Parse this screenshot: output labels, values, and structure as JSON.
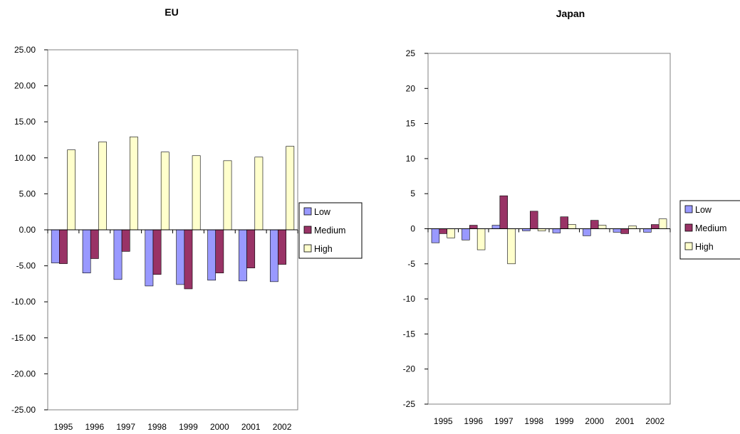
{
  "chart_data": [
    {
      "type": "bar",
      "title": "EU",
      "categories": [
        "1995",
        "1996",
        "1997",
        "1998",
        "1999",
        "2000",
        "2001",
        "2002"
      ],
      "series": [
        {
          "name": "Low",
          "values": [
            -4.6,
            -6.0,
            -6.9,
            -7.8,
            -7.6,
            -7.0,
            -7.1,
            -7.2
          ]
        },
        {
          "name": "Medium",
          "values": [
            -4.7,
            -4.0,
            -3.0,
            -6.2,
            -8.2,
            -6.0,
            -5.3,
            -4.8
          ]
        },
        {
          "name": "High",
          "values": [
            11.1,
            12.2,
            12.9,
            10.8,
            10.3,
            9.6,
            10.1,
            11.6
          ]
        }
      ],
      "ylim": [
        -25,
        25
      ],
      "yticks": [
        "25.00",
        "20.00",
        "15.00",
        "10.00",
        "5.00",
        "0.00",
        "-5.00",
        "-10.00",
        "-15.00",
        "-20.00",
        "-25.00"
      ],
      "xlabel": "",
      "ylabel": "",
      "legend": "right",
      "grid": false
    },
    {
      "type": "bar",
      "title": "Japan",
      "categories": [
        "1995",
        "1996",
        "1997",
        "1998",
        "1999",
        "2000",
        "2001",
        "2002"
      ],
      "series": [
        {
          "name": "Low",
          "values": [
            -2.0,
            -1.6,
            0.5,
            -0.3,
            -0.6,
            -1.0,
            -0.5,
            -0.5
          ]
        },
        {
          "name": "Medium",
          "values": [
            -0.7,
            0.5,
            4.7,
            2.5,
            1.7,
            1.2,
            -0.7,
            0.6
          ]
        },
        {
          "name": "High",
          "values": [
            -1.3,
            -3.0,
            -5.0,
            -0.3,
            0.6,
            0.5,
            0.4,
            1.4
          ]
        }
      ],
      "ylim": [
        -25,
        25
      ],
      "yticks": [
        "25",
        "20",
        "15",
        "10",
        "5",
        "0",
        "-5",
        "-10",
        "-15",
        "-20",
        "-25"
      ],
      "xlabel": "",
      "ylabel": "",
      "legend": "right",
      "grid": false
    }
  ],
  "colors": {
    "Low": "#9999ff",
    "Medium": "#993366",
    "High": "#ffffcc"
  }
}
